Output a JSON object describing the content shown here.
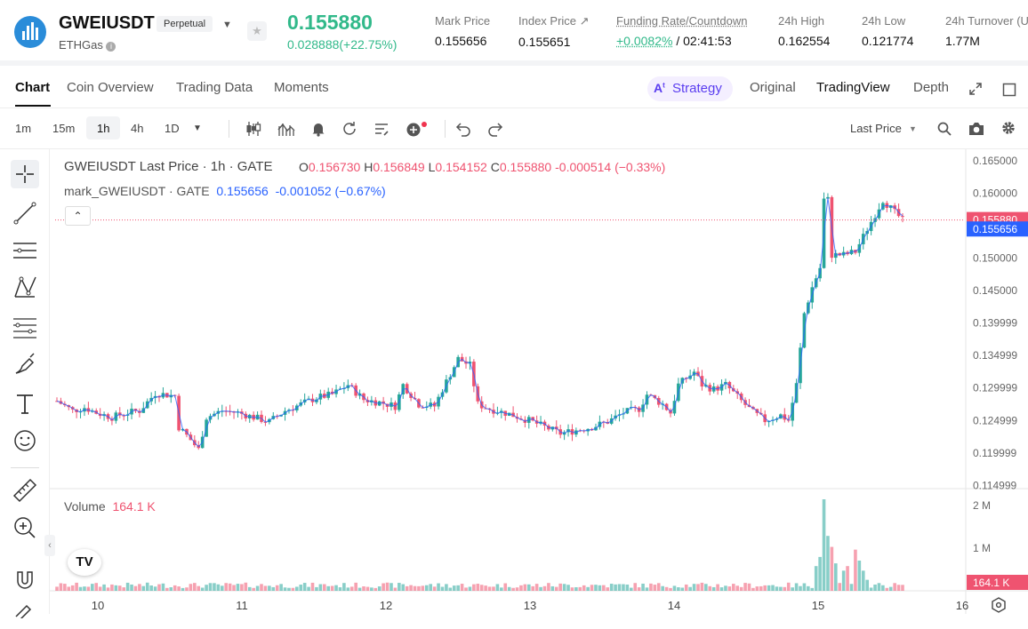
{
  "header": {
    "symbol": "GWEIUSDT",
    "badge": "Perpetual",
    "subtitle": "ETHGas",
    "last_price": "0.155880",
    "change": "0.028888(+22.75%)",
    "stats": [
      {
        "label": "Mark Price",
        "value": "0.155656"
      },
      {
        "label": "Index Price",
        "value": "0.155651"
      },
      {
        "label": "Funding Rate/Countdown",
        "value_green": "+0.0082%",
        "value_rest": " / 02:41:53"
      },
      {
        "label": "24h High",
        "value": "0.162554"
      },
      {
        "label": "24h Low",
        "value": "0.121774"
      },
      {
        "label": "24h Turnover (U",
        "value": "1.77M"
      }
    ]
  },
  "tabs": {
    "left": [
      "Chart",
      "Coin Overview",
      "Trading Data",
      "Moments"
    ],
    "strategy": "Strategy",
    "right": [
      "Original",
      "TradingView",
      "Depth"
    ]
  },
  "toolbar": {
    "intervals": [
      "1m",
      "15m",
      "1h",
      "4h",
      "1D"
    ],
    "price_type": "Last Price"
  },
  "legend": {
    "title": "GWEIUSDT Last Price · 1h · GATE",
    "o_label": "O",
    "o": "0.156730",
    "h_label": "H",
    "h": "0.156849",
    "l_label": "L",
    "l": "0.154152",
    "c_label": "C",
    "c": "0.155880",
    "delta": "-0.000514 (−0.33%)",
    "mark_title": "mark_GWEIUSDT · GATE",
    "mark_value": "0.155656",
    "mark_delta": "-0.001052 (−0.67%)",
    "volume_label": "Volume",
    "volume_value": "164.1 K"
  },
  "colors": {
    "up": "#26a69a",
    "down": "#ef5370",
    "mark": "#2962ff",
    "accent": "#31b98a"
  },
  "chart_data": {
    "type": "candlestick",
    "x_ticks": [
      "10",
      "11",
      "12",
      "13",
      "14",
      "15",
      "16"
    ],
    "y_ticks": [
      "0.165000",
      "0.160000",
      "0.155000",
      "0.150000",
      "0.145000",
      "0.139999",
      "0.134999",
      "0.129999",
      "0.124999",
      "0.119999",
      "0.114999"
    ],
    "ylim": [
      0.1145,
      0.1665
    ],
    "price_tags": {
      "last": "0.155880",
      "mark": "0.155656"
    },
    "volume_ticks": [
      "2 M",
      "1 M"
    ],
    "volume_tag": "164.1 K",
    "close_path": [
      [
        0,
        0.128
      ],
      [
        4,
        0.1265
      ],
      [
        7,
        0.127
      ],
      [
        10,
        0.1262
      ],
      [
        14,
        0.1255
      ],
      [
        18,
        0.1262
      ],
      [
        21,
        0.1265
      ],
      [
        25,
        0.1292
      ],
      [
        30,
        0.1288
      ],
      [
        31,
        0.124
      ],
      [
        34,
        0.122
      ],
      [
        36,
        0.1205
      ],
      [
        38,
        0.1255
      ],
      [
        42,
        0.1265
      ],
      [
        46,
        0.1262
      ],
      [
        50,
        0.1255
      ],
      [
        54,
        0.1248
      ],
      [
        58,
        0.1265
      ],
      [
        62,
        0.1275
      ],
      [
        66,
        0.1285
      ],
      [
        70,
        0.129
      ],
      [
        74,
        0.1305
      ],
      [
        78,
        0.1282
      ],
      [
        82,
        0.1278
      ],
      [
        86,
        0.1272
      ],
      [
        88,
        0.1305
      ],
      [
        92,
        0.1275
      ],
      [
        96,
        0.1272
      ],
      [
        98,
        0.1298
      ],
      [
        102,
        0.1345
      ],
      [
        105,
        0.1335
      ],
      [
        107,
        0.1275
      ],
      [
        110,
        0.1268
      ],
      [
        115,
        0.126
      ],
      [
        120,
        0.125
      ],
      [
        124,
        0.124
      ],
      [
        128,
        0.123
      ],
      [
        132,
        0.1235
      ],
      [
        136,
        0.124
      ],
      [
        140,
        0.1248
      ],
      [
        144,
        0.1262
      ],
      [
        148,
        0.1268
      ],
      [
        150,
        0.129
      ],
      [
        154,
        0.1275
      ],
      [
        156,
        0.1262
      ],
      [
        158,
        0.1305
      ],
      [
        162,
        0.1325
      ],
      [
        164,
        0.1305
      ],
      [
        167,
        0.1298
      ],
      [
        170,
        0.1305
      ],
      [
        174,
        0.128
      ],
      [
        177,
        0.1262
      ],
      [
        180,
        0.125
      ],
      [
        184,
        0.1258
      ],
      [
        186,
        0.125
      ],
      [
        188,
        0.1305
      ],
      [
        190,
        0.1415
      ],
      [
        192,
        0.1455
      ],
      [
        194,
        0.1485
      ],
      [
        195,
        0.159
      ],
      [
        196,
        0.159
      ],
      [
        197,
        0.1505
      ],
      [
        200,
        0.1505
      ],
      [
        203,
        0.151
      ],
      [
        206,
        0.1545
      ],
      [
        210,
        0.159
      ],
      [
        213,
        0.157
      ],
      [
        215,
        0.1559
      ]
    ],
    "volume_spikes": [
      [
        193,
        0.27
      ],
      [
        194,
        0.37
      ],
      [
        195,
        1.0
      ],
      [
        196,
        0.6
      ],
      [
        197,
        0.48
      ],
      [
        198,
        0.3
      ],
      [
        200,
        0.22
      ],
      [
        201,
        0.27
      ],
      [
        203,
        0.45
      ],
      [
        204,
        0.33
      ],
      [
        205,
        0.22
      ],
      [
        206,
        0.12
      ]
    ]
  }
}
